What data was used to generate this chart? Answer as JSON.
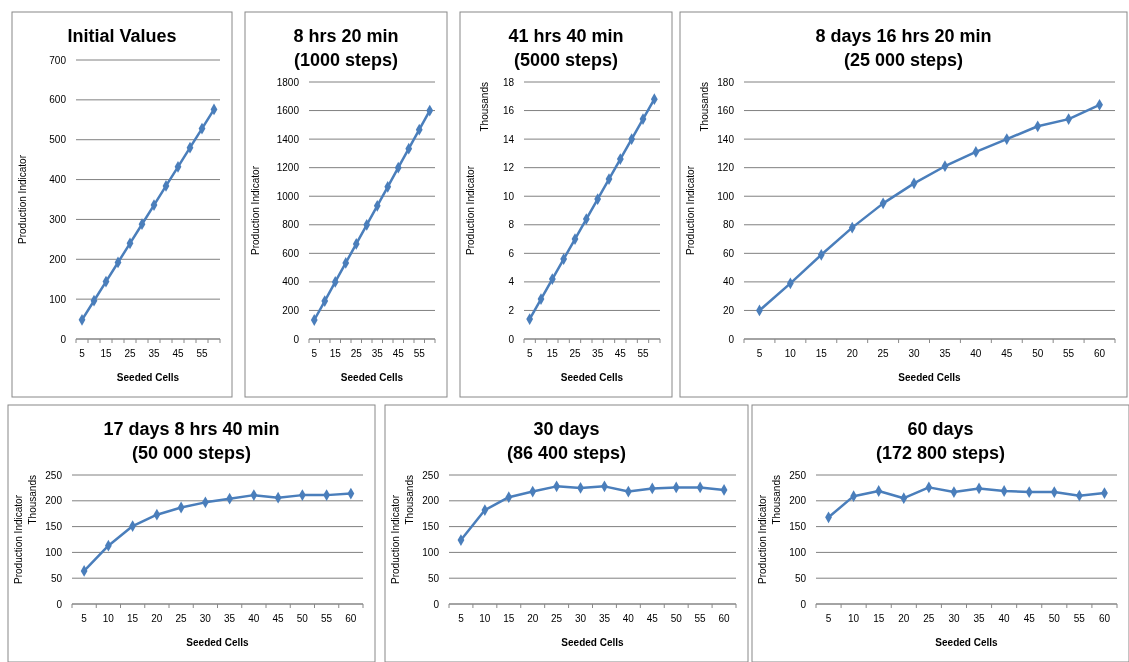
{
  "chart_data": [
    {
      "type": "line",
      "title": "Initial Values",
      "xlabel": "Seeded Cells",
      "ylabel": "Production Indicator",
      "categories": [
        "5",
        null,
        "15",
        null,
        "25",
        null,
        "35",
        null,
        "45",
        null,
        "55",
        null
      ],
      "series": [
        {
          "color": "#4a7ebb",
          "values": [
            48,
            96,
            144,
            192,
            240,
            288,
            336,
            384,
            432,
            480,
            528,
            576
          ]
        }
      ],
      "ylim": [
        0,
        700
      ],
      "yticks": [
        0,
        100,
        200,
        300,
        400,
        500,
        600,
        700
      ],
      "grid": "y",
      "marker": "diamond",
      "line_style": "solid"
    },
    {
      "type": "line",
      "title": "8 hrs 20 min",
      "subtitle": "(1000 steps)",
      "xlabel": "Seeded Cells",
      "ylabel": "Production Indicator",
      "categories": [
        "5",
        null,
        "15",
        null,
        "25",
        null,
        "35",
        null,
        "45",
        null,
        "55",
        null
      ],
      "series": [
        {
          "color": "#4a7ebb",
          "values": [
            133,
            266,
            400,
            533,
            666,
            800,
            933,
            1066,
            1200,
            1333,
            1466,
            1600
          ]
        }
      ],
      "ylim": [
        0,
        1800
      ],
      "yticks": [
        0,
        200,
        400,
        600,
        800,
        1000,
        1200,
        1400,
        1600,
        1800
      ],
      "grid": "y",
      "marker": "diamond",
      "line_style": "solid"
    },
    {
      "type": "line",
      "title": "41 hrs 40 min",
      "subtitle": "(5000 steps)",
      "xlabel": "Seeded Cells",
      "ylabel": "Production Indicator",
      "annotations": [
        "Thousands"
      ],
      "categories": [
        "5",
        null,
        "15",
        null,
        "25",
        null,
        "35",
        null,
        "45",
        null,
        "55",
        null
      ],
      "series": [
        {
          "color": "#4a7ebb",
          "values": [
            1.4,
            2.8,
            4.2,
            5.6,
            7.0,
            8.4,
            9.8,
            11.2,
            12.6,
            14.0,
            15.4,
            16.8
          ]
        }
      ],
      "ylim": [
        0,
        18
      ],
      "yticks": [
        0,
        2,
        4,
        6,
        8,
        10,
        12,
        14,
        16,
        18
      ],
      "grid": "y",
      "marker": "diamond",
      "line_style": "solid"
    },
    {
      "type": "line",
      "title": "8 days 16 hrs 20 min",
      "subtitle": "(25 000 steps)",
      "xlabel": "Seeded Cells",
      "ylabel": "Production Indicator",
      "annotations": [
        "Thousands"
      ],
      "categories": [
        "5",
        "10",
        "15",
        "20",
        "25",
        "30",
        "35",
        "40",
        "45",
        "50",
        "55",
        "60"
      ],
      "series": [
        {
          "color": "#4a7ebb",
          "values": [
            20,
            39,
            59,
            78,
            95,
            109,
            121,
            131,
            140,
            149,
            154,
            164
          ]
        }
      ],
      "ylim": [
        0,
        180
      ],
      "yticks": [
        0,
        20,
        40,
        60,
        80,
        100,
        120,
        140,
        160,
        180
      ],
      "grid": "y",
      "marker": "diamond",
      "line_style": "solid"
    },
    {
      "type": "line",
      "title": "17 days 8 hrs 40 min",
      "subtitle": "(50 000 steps)",
      "xlabel": "Seeded Cells",
      "ylabel": "Production Indicator",
      "annotations": [
        "Thousands"
      ],
      "categories": [
        "5",
        "10",
        "15",
        "20",
        "25",
        "30",
        "35",
        "40",
        "45",
        "50",
        "55",
        "60"
      ],
      "series": [
        {
          "color": "#4a7ebb",
          "values": [
            64,
            113,
            151,
            173,
            187,
            197,
            204,
            211,
            206,
            211,
            211,
            214
          ]
        }
      ],
      "ylim": [
        0,
        250
      ],
      "yticks": [
        0,
        50,
        100,
        150,
        200,
        250
      ],
      "grid": "y",
      "marker": "diamond",
      "line_style": "solid"
    },
    {
      "type": "line",
      "title": "30 days",
      "subtitle": "(86 400 steps)",
      "xlabel": "Seeded Cells",
      "ylabel": "Production Indicator",
      "annotations": [
        "Thousands"
      ],
      "categories": [
        "5",
        "10",
        "15",
        "20",
        "25",
        "30",
        "35",
        "40",
        "45",
        "50",
        "55",
        "60"
      ],
      "series": [
        {
          "color": "#4a7ebb",
          "values": [
            124,
            182,
            207,
            218,
            228,
            225,
            228,
            218,
            224,
            226,
            226,
            221
          ]
        }
      ],
      "ylim": [
        0,
        250
      ],
      "yticks": [
        0,
        50,
        100,
        150,
        200,
        250
      ],
      "grid": "y",
      "marker": "diamond",
      "line_style": "solid"
    },
    {
      "type": "line",
      "title": "60 days",
      "subtitle": "(172 800 steps)",
      "xlabel": "Seeded Cells",
      "ylabel": "Production Indicator",
      "annotations": [
        "Thousands"
      ],
      "categories": [
        "5",
        "10",
        "15",
        "20",
        "25",
        "30",
        "35",
        "40",
        "45",
        "50",
        "55",
        "60"
      ],
      "series": [
        {
          "color": "#4a7ebb",
          "values": [
            168,
            209,
            219,
            205,
            226,
            217,
            224,
            219,
            217,
            217,
            210,
            215
          ]
        }
      ],
      "ylim": [
        0,
        250
      ],
      "yticks": [
        0,
        50,
        100,
        150,
        200,
        250
      ],
      "grid": "y",
      "marker": "diamond",
      "line_style": "solid"
    }
  ]
}
